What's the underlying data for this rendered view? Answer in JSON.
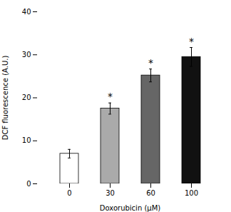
{
  "chart_data": {
    "type": "bar",
    "categories": [
      "0",
      "30",
      "60",
      "100"
    ],
    "values": [
      7.0,
      17.5,
      25.2,
      29.5
    ],
    "errors": [
      1.0,
      1.3,
      1.5,
      2.2
    ],
    "colors": [
      "#ffffff",
      "#aaaaaa",
      "#666666",
      "#111111"
    ],
    "annotations": [
      {
        "category": "30",
        "text": "*"
      },
      {
        "category": "60",
        "text": "*"
      },
      {
        "category": "100",
        "text": "*"
      }
    ],
    "xlabel": "Doxorubicin (μM)",
    "ylabel": "DCF fluorescence (A.U.)",
    "ylim": [
      0,
      40
    ],
    "yticks": [
      0,
      10,
      20,
      30,
      40
    ],
    "grid": false
  }
}
